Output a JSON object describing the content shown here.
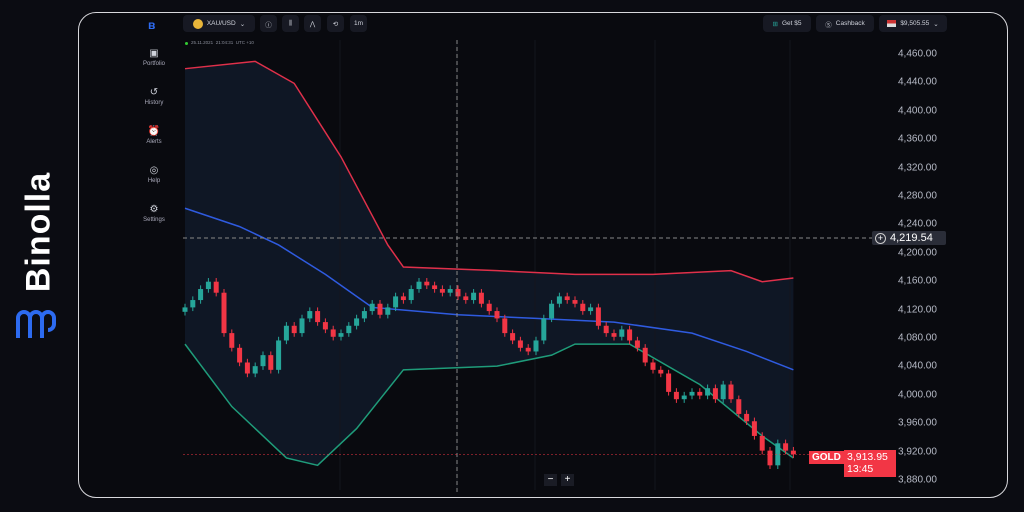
{
  "brand": {
    "name": "Binolla"
  },
  "sidebar": {
    "items": [
      {
        "label": "Portfolio",
        "icon": "briefcase-icon"
      },
      {
        "label": "History",
        "icon": "history-icon"
      },
      {
        "label": "Alerts",
        "icon": "alarm-icon"
      },
      {
        "label": "Help",
        "icon": "lifebuoy-icon"
      },
      {
        "label": "Settings",
        "icon": "gear-icon"
      }
    ]
  },
  "toolbar": {
    "asset": "XAU/USD",
    "timeframe": "1m",
    "get_bonus": "Get $5",
    "cashback": "Cashback",
    "balance": "$9,505.55"
  },
  "chart_info": {
    "timestamp": "25.11.2021  21:04:31  UTC +10"
  },
  "price_axis": {
    "labels": [
      "4,460.00",
      "4,440.00",
      "4,400.00",
      "4,360.00",
      "4,320.00",
      "4,280.00",
      "4,240.00",
      "4,200.00",
      "4,160.00",
      "4,120.00",
      "4,080.00",
      "4,040.00",
      "4,000.00",
      "3,960.00",
      "3,920.00",
      "3,880.00"
    ]
  },
  "crosshair": {
    "price": "4,219.54"
  },
  "current": {
    "symbol": "GOLD",
    "price": "3,913.95",
    "countdown": "13:45"
  },
  "zoom": {
    "minus": "−",
    "plus": "+"
  },
  "colors": {
    "up": "#26a69a",
    "down": "#f23645",
    "upper_band": "#e0304a",
    "middle_band": "#2f5be0",
    "lower_band": "#1f9c7a",
    "accent": "#f23645"
  },
  "chart_data": {
    "type": "candlestick",
    "indicator": "Bollinger Bands",
    "ylim": [
      3870,
      4465
    ],
    "closes": [
      4115,
      4125,
      4140,
      4150,
      4135,
      4080,
      4060,
      4040,
      4025,
      4035,
      4050,
      4030,
      4070,
      4090,
      4080,
      4100,
      4110,
      4095,
      4085,
      4075,
      4080,
      4090,
      4100,
      4110,
      4120,
      4105,
      4115,
      4130,
      4125,
      4140,
      4150,
      4145,
      4140,
      4135,
      4140,
      4130,
      4125,
      4135,
      4120,
      4110,
      4100,
      4080,
      4070,
      4060,
      4055,
      4070,
      4100,
      4120,
      4130,
      4125,
      4120,
      4110,
      4115,
      4090,
      4080,
      4075,
      4085,
      4070,
      4060,
      4040,
      4030,
      4025,
      4000,
      3990,
      3995,
      4000,
      3995,
      4005,
      3990,
      4010,
      3990,
      3970,
      3960,
      3940,
      3920,
      3900,
      3930,
      3920,
      3915
    ],
    "upper_band": [
      [
        0,
        4440
      ],
      [
        9,
        4450
      ],
      [
        14,
        4420
      ],
      [
        20,
        4320
      ],
      [
        26,
        4200
      ],
      [
        28,
        4170
      ],
      [
        40,
        4165
      ],
      [
        50,
        4160
      ],
      [
        60,
        4160
      ],
      [
        70,
        4165
      ],
      [
        74,
        4150
      ],
      [
        78,
        4155
      ]
    ],
    "middle_band": [
      [
        0,
        4250
      ],
      [
        7,
        4225
      ],
      [
        12,
        4200
      ],
      [
        18,
        4160
      ],
      [
        24,
        4115
      ],
      [
        35,
        4105
      ],
      [
        45,
        4100
      ],
      [
        55,
        4095
      ],
      [
        65,
        4080
      ],
      [
        72,
        4055
      ],
      [
        78,
        4030
      ]
    ],
    "lower_band": [
      [
        0,
        4065
      ],
      [
        6,
        3980
      ],
      [
        13,
        3910
      ],
      [
        17,
        3900
      ],
      [
        22,
        3950
      ],
      [
        28,
        4030
      ],
      [
        40,
        4035
      ],
      [
        47,
        4050
      ],
      [
        50,
        4065
      ],
      [
        57,
        4065
      ],
      [
        66,
        4010
      ],
      [
        74,
        3940
      ],
      [
        78,
        3910
      ]
    ]
  }
}
